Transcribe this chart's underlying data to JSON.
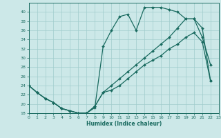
{
  "xlabel": "Humidex (Indice chaleur)",
  "bg_color": "#cce8e8",
  "line_color": "#1a6b60",
  "grid_color": "#a0cccc",
  "xlim": [
    0,
    23
  ],
  "ylim": [
    18,
    42
  ],
  "yticks": [
    18,
    20,
    22,
    24,
    26,
    28,
    30,
    32,
    34,
    36,
    38,
    40
  ],
  "xticks": [
    0,
    1,
    2,
    3,
    4,
    5,
    6,
    7,
    8,
    9,
    10,
    11,
    12,
    13,
    14,
    15,
    16,
    17,
    18,
    19,
    20,
    21,
    22,
    23
  ],
  "curve1_x": [
    0,
    1,
    2,
    3,
    4,
    5,
    6,
    7,
    8,
    9,
    10,
    11,
    12,
    13,
    14,
    15,
    16,
    17,
    18,
    19,
    20,
    21,
    22
  ],
  "curve1_y": [
    24,
    22.5,
    21.2,
    20.3,
    19.0,
    18.5,
    18.0,
    18.0,
    19.2,
    32.5,
    36.0,
    39.0,
    39.5,
    36.0,
    41.0,
    41.0,
    41.0,
    40.5,
    40.0,
    38.5,
    38.5,
    34.5,
    28.5
  ],
  "curve2_x": [
    0,
    1,
    2,
    3,
    4,
    5,
    6,
    7,
    8,
    9,
    10,
    11,
    12,
    13,
    14,
    15,
    16,
    17,
    18,
    19,
    20,
    21,
    22
  ],
  "curve2_y": [
    24,
    22.5,
    21.2,
    20.3,
    19.0,
    18.5,
    18.0,
    18.0,
    19.5,
    22.5,
    24.0,
    25.5,
    27.0,
    28.5,
    30.0,
    31.5,
    33.0,
    34.5,
    36.5,
    38.5,
    38.5,
    36.5,
    25.0
  ],
  "curve3_x": [
    0,
    1,
    2,
    3,
    4,
    5,
    6,
    7,
    8,
    9,
    10,
    11,
    12,
    13,
    14,
    15,
    16,
    17,
    18,
    19,
    20,
    21,
    22
  ],
  "curve3_y": [
    24,
    22.5,
    21.2,
    20.3,
    19.0,
    18.5,
    18.0,
    18.0,
    19.5,
    22.5,
    23.0,
    24.0,
    25.5,
    27.0,
    28.5,
    29.5,
    30.5,
    32.0,
    33.0,
    34.5,
    35.5,
    33.5,
    25.0
  ]
}
